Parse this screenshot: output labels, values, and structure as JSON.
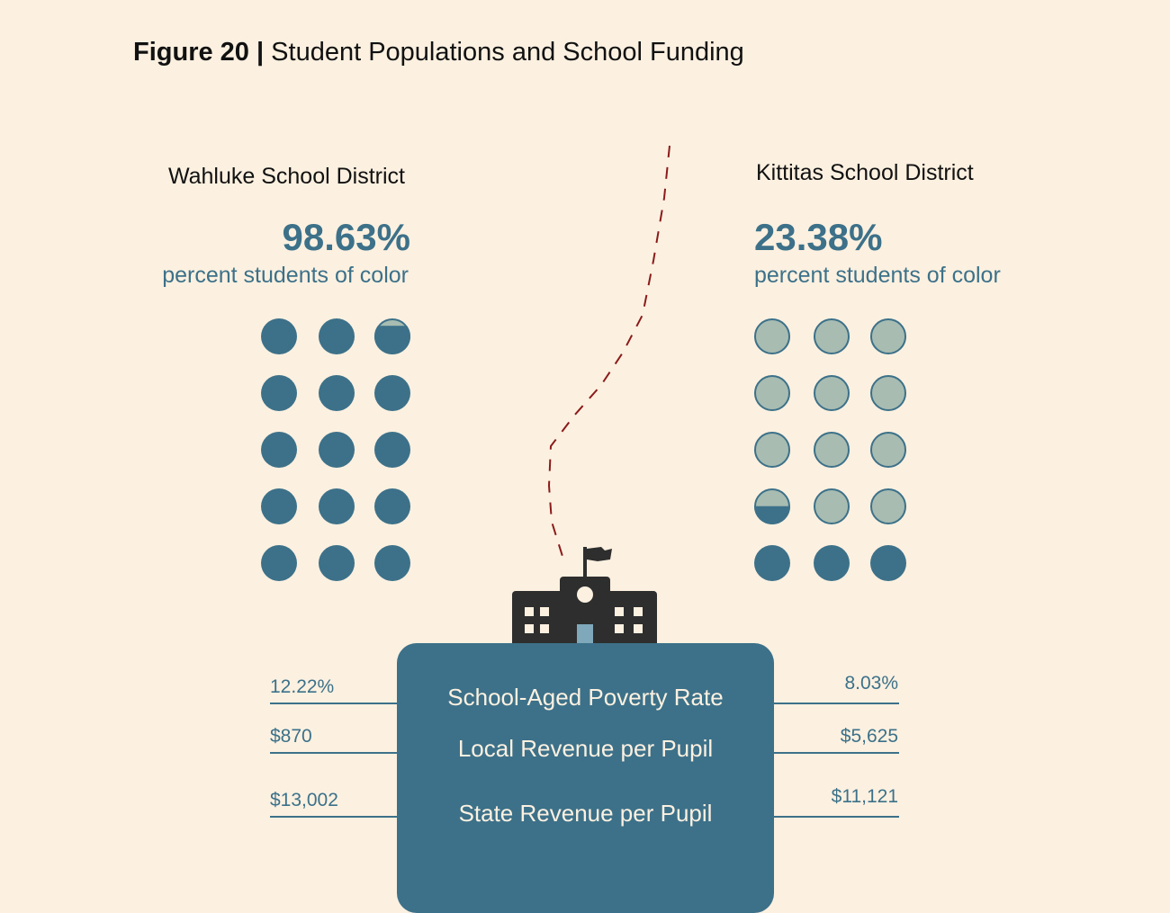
{
  "figure": {
    "label": "Figure 20 |",
    "title": "Student Populations and School Funding"
  },
  "chart_data": {
    "type": "pictogram",
    "units_per_district": 15,
    "grid": "3 columns x 5 rows",
    "districts": [
      {
        "name": "Wahluke School District",
        "percent_label": "98.63%",
        "percent_value": 98.63,
        "sublabel": "percent students of color"
      },
      {
        "name": "Kittitas School District",
        "percent_label": "23.38%",
        "percent_value": 23.38,
        "sublabel": "percent students of color"
      }
    ],
    "metrics": [
      {
        "label": "School-Aged Poverty Rate",
        "wahluke": "12.22%",
        "kittitas": "8.03%"
      },
      {
        "label": "Local Revenue per Pupil",
        "wahluke": "$870",
        "kittitas": "$5,625"
      },
      {
        "label": "State Revenue per Pupil",
        "wahluke": "$13,002",
        "kittitas": "$11,121"
      }
    ]
  },
  "colors": {
    "background": "#fcf1e1",
    "filled": "#3c7189",
    "empty": "#a9bcb2",
    "empty_stroke": "#3c7189",
    "boundary": "#8b1a1a",
    "building": "#2e2e2e",
    "text_accent": "#3c7189"
  },
  "icons": [
    "school-building-icon",
    "flag-icon",
    "clock-icon",
    "door-icon"
  ]
}
